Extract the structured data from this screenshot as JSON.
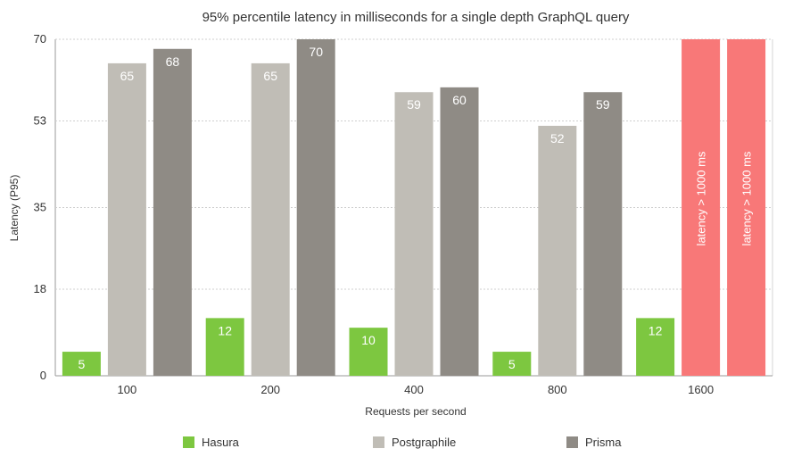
{
  "chart_data": {
    "type": "bar",
    "title": "95% percentile latency in milliseconds for a single depth GraphQL query",
    "xlabel": "Requests per second",
    "ylabel": "Latency (P95)",
    "categories": [
      "100",
      "200",
      "400",
      "800",
      "1600"
    ],
    "ylim": [
      0,
      70
    ],
    "yticks": [
      0,
      18,
      35,
      53,
      70
    ],
    "grid": true,
    "legend_position": "bottom",
    "series": [
      {
        "name": "Hasura",
        "color": "#7dc740",
        "values": [
          5,
          12,
          10,
          5,
          12
        ]
      },
      {
        "name": "Postgraphile",
        "color": "#c0bdb6",
        "values": [
          65,
          65,
          59,
          52,
          null
        ]
      },
      {
        "name": "Prisma",
        "color": "#8f8b85",
        "values": [
          68,
          70,
          60,
          59,
          null
        ]
      }
    ],
    "overflow": {
      "category": "1600",
      "color": "#f87878",
      "label": "latency > 1000 ms",
      "series": [
        "Postgraphile",
        "Prisma"
      ]
    }
  }
}
